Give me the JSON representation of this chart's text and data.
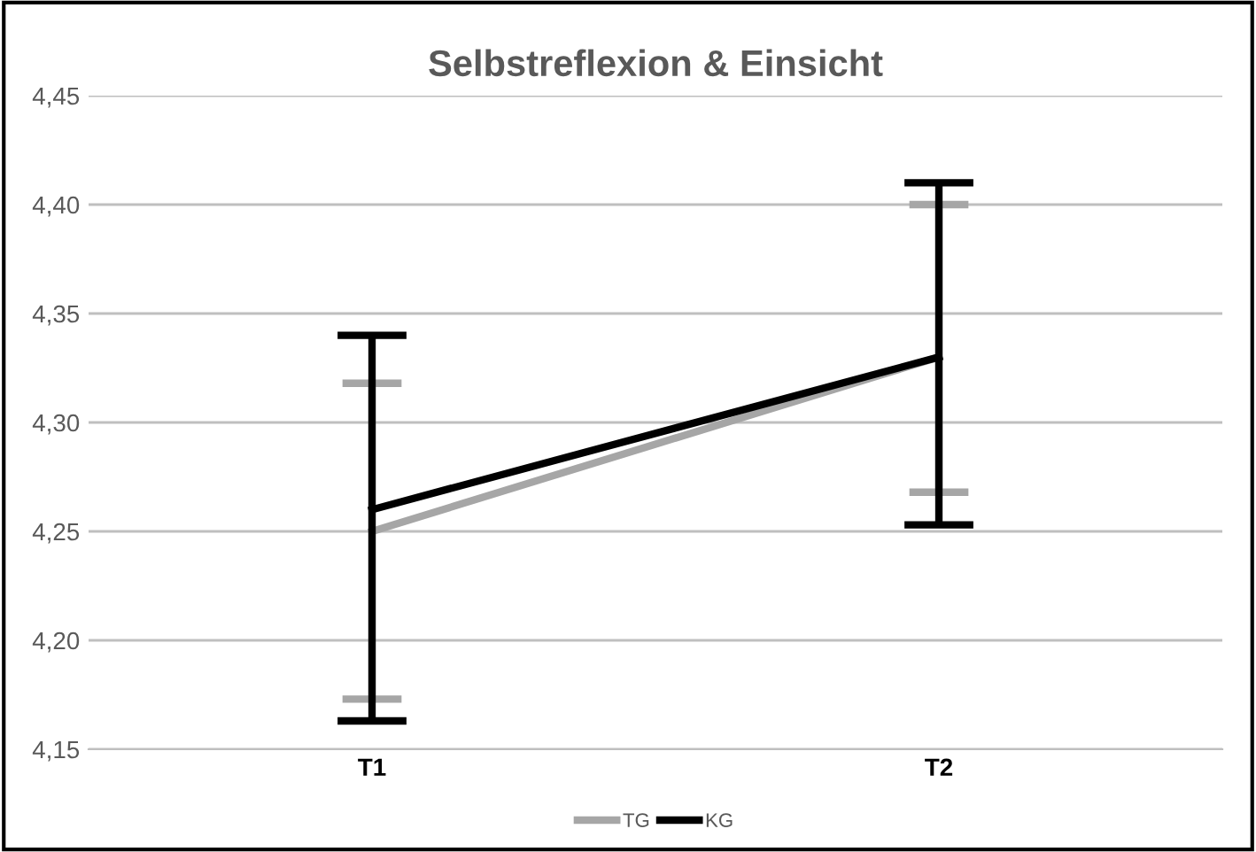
{
  "chart_data": {
    "type": "line",
    "title": "Selbstreflexion & Einsicht",
    "categories": [
      "T1",
      "T2"
    ],
    "series": [
      {
        "name": "TG",
        "color": "#a6a6a6",
        "values": [
          4.25,
          4.33
        ],
        "errors": [
          [
            4.173,
            4.318
          ],
          [
            4.268,
            4.4
          ]
        ]
      },
      {
        "name": "KG",
        "color": "#000000",
        "values": [
          4.26,
          4.33
        ],
        "errors": [
          [
            4.163,
            4.34
          ],
          [
            4.253,
            4.41
          ]
        ]
      }
    ],
    "ylim": [
      4.15,
      4.45
    ],
    "yticks": [
      {
        "value": 4.15,
        "label": "4,15"
      },
      {
        "value": 4.2,
        "label": "4,20"
      },
      {
        "value": 4.25,
        "label": "4,25"
      },
      {
        "value": 4.3,
        "label": "4,30"
      },
      {
        "value": 4.35,
        "label": "4,35"
      },
      {
        "value": 4.4,
        "label": "4,40"
      },
      {
        "value": 4.45,
        "label": "4,45"
      }
    ],
    "grid": "y",
    "legend": "bottom",
    "marker": "none",
    "line_style": "solid"
  }
}
